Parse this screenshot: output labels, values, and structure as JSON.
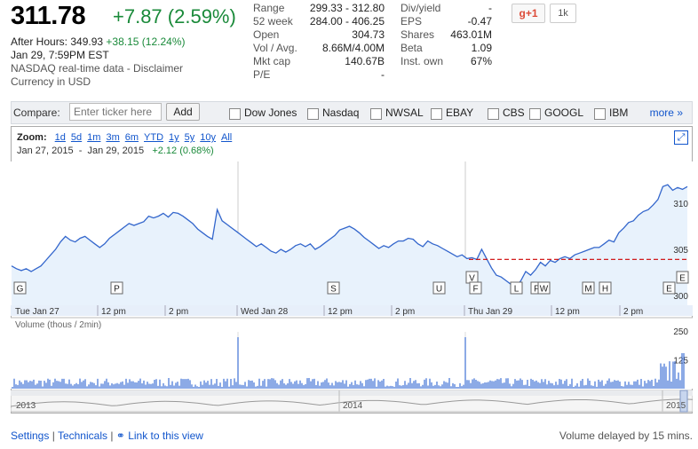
{
  "quote": {
    "price": "311.78",
    "change": "+7.87 (2.59%)",
    "after_hours_label": "After Hours:",
    "after_hours_price": "349.93",
    "after_hours_change": "+38.15 (12.24%)",
    "timestamp": "Jan 29, 7:59PM EST",
    "source_text": "NASDAQ real-time data - ",
    "disclaimer_link": "Disclaimer",
    "currency": "Currency in USD"
  },
  "stats_left": [
    {
      "key": "Range",
      "value": "299.33 - 312.80"
    },
    {
      "key": "52 week",
      "value": "284.00 - 406.25"
    },
    {
      "key": "Open",
      "value": "304.73"
    },
    {
      "key": "Vol / Avg.",
      "value": "8.66M/4.00M"
    },
    {
      "key": "Mkt cap",
      "value": "140.67B"
    },
    {
      "key": "P/E",
      "value": "-"
    }
  ],
  "stats_right": [
    {
      "key": "Div/yield",
      "value": "-"
    },
    {
      "key": "EPS",
      "value": "-0.47"
    },
    {
      "key": "Shares",
      "value": "463.01M"
    },
    {
      "key": "Beta",
      "value": "1.09"
    },
    {
      "key": "Inst. own",
      "value": "67%"
    }
  ],
  "social": {
    "gplus_label": "g+1",
    "count": "1k"
  },
  "compare": {
    "label": "Compare:",
    "placeholder": "Enter ticker here",
    "add_label": "Add",
    "checkboxes": [
      "Dow Jones",
      "Nasdaq",
      "NWSAL",
      "EBAY",
      "CBS",
      "GOOGL",
      "IBM"
    ],
    "more_label": "more »"
  },
  "zoom": {
    "label": "Zoom:",
    "options": [
      "1d",
      "5d",
      "1m",
      "3m",
      "6m",
      "YTD",
      "1y",
      "5y",
      "10y",
      "All"
    ]
  },
  "date_range": {
    "start": "Jan 27, 2015",
    "end": "Jan 29, 2015",
    "change": "+2.12 (0.68%)"
  },
  "volume_label": "Volume (thous / 2min)",
  "colors": {
    "line": "#3366cc",
    "fill": "#e8f2fc",
    "prev_close": "#cc0000",
    "bar": "#1a55cc"
  },
  "chart_data": {
    "type": "area",
    "price_axis": {
      "ticks": [
        310,
        305,
        300
      ]
    },
    "prev_close": 303.91,
    "x_labels": [
      "Tue Jan 27",
      "12 pm",
      "2 pm",
      "Wed Jan 28",
      "12 pm",
      "2 pm",
      "Thu Jan 29",
      "12 pm",
      "2 pm"
    ],
    "series": [
      {
        "values": [
          303.2,
          302.9,
          302.7,
          302.9,
          302.6,
          302.9,
          303.2,
          303.8,
          304.4,
          305.0,
          305.8,
          306.4,
          306.0,
          305.8,
          306.2,
          306.4,
          306.0,
          305.6,
          305.2,
          305.6,
          306.2,
          306.6,
          307.0,
          307.4,
          307.8,
          307.6,
          307.8,
          308.0,
          308.6,
          308.4,
          308.6,
          308.9,
          308.5,
          309.0,
          308.9,
          308.6,
          308.2,
          307.8,
          307.2,
          306.8,
          306.4,
          306.1,
          309.3,
          308.1,
          307.7,
          307.3,
          306.9,
          306.5,
          306.1,
          305.7,
          305.3,
          305.6,
          305.2,
          304.8,
          304.6,
          305.0,
          304.7,
          305.0,
          305.4,
          305.6,
          305.3,
          305.6,
          305.0,
          305.3,
          305.7,
          306.1,
          306.5,
          307.1,
          307.3,
          307.5,
          307.2,
          306.8,
          306.3,
          305.9,
          305.5,
          305.1,
          305.4,
          305.2,
          305.6,
          305.9,
          305.9,
          306.2,
          306.1,
          305.6,
          305.3,
          305.9,
          305.6,
          305.4,
          305.1,
          304.8,
          304.5,
          304.2,
          304.4,
          304.0,
          304.1,
          303.9,
          305.0,
          304.0,
          303.0,
          302.2,
          302.0,
          301.6,
          301.2,
          301.0,
          301.6,
          302.6,
          302.2,
          302.8,
          303.6,
          303.2,
          303.8,
          303.6,
          304.0,
          304.2,
          304.0,
          304.4,
          304.6,
          304.8,
          305.0,
          305.2,
          305.2,
          305.6,
          306.0,
          305.8,
          306.8,
          307.3,
          307.9,
          308.1,
          308.7,
          309.1,
          309.3,
          309.8,
          310.4,
          311.8,
          312.0,
          311.4,
          311.7,
          311.5,
          311.8
        ]
      }
    ],
    "volume_axis": {
      "ticks": [
        250,
        125
      ]
    },
    "navigator_years": [
      "2013",
      "2014",
      "2015"
    ]
  },
  "footer": {
    "settings": "Settings",
    "sep": "|",
    "technicals": "Technicals",
    "link_view": "Link to this view",
    "volume_note": "Volume delayed by 15 mins."
  }
}
